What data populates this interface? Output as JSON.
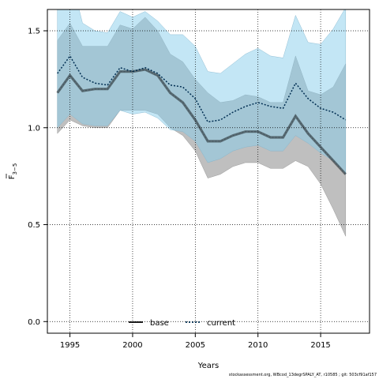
{
  "chart_data": {
    "type": "line",
    "xlabel": "Years",
    "ylabel_main": "F",
    "ylabel_sub": "3−5",
    "xlim": [
      1993.2,
      2018.9
    ],
    "ylim": [
      -0.06,
      1.61
    ],
    "x_ticks": [
      1995,
      2000,
      2005,
      2010,
      2015
    ],
    "y_ticks": [
      0.0,
      0.5,
      1.0,
      1.5
    ],
    "y_tick_labels": [
      "0.0",
      "0.5",
      "1.0",
      "1.5"
    ],
    "grid": true,
    "legend_position": "bottom-center",
    "x": [
      1994,
      1995,
      1996,
      1997,
      1998,
      1999,
      2000,
      2001,
      2002,
      2003,
      2004,
      2005,
      2006,
      2007,
      2008,
      2009,
      2010,
      2011,
      2012,
      2013,
      2014,
      2015,
      2016,
      2017
    ],
    "series": [
      {
        "name": "base",
        "color": "#000000",
        "dash": "solid",
        "values": [
          1.18,
          1.27,
          1.19,
          1.2,
          1.2,
          1.29,
          1.29,
          1.3,
          1.27,
          1.18,
          1.13,
          1.04,
          0.93,
          0.93,
          0.96,
          0.98,
          0.98,
          0.95,
          0.95,
          1.06,
          0.97,
          0.9,
          0.83,
          0.76
        ],
        "lower": [
          0.97,
          1.04,
          1.01,
          1.0,
          1.0,
          1.09,
          1.09,
          1.09,
          1.07,
          1.0,
          0.96,
          0.88,
          0.74,
          0.76,
          0.8,
          0.82,
          0.82,
          0.79,
          0.79,
          0.83,
          0.8,
          0.71,
          0.58,
          0.44
        ],
        "upper": [
          1.45,
          1.54,
          1.42,
          1.42,
          1.42,
          1.53,
          1.51,
          1.57,
          1.5,
          1.38,
          1.34,
          1.25,
          1.18,
          1.13,
          1.14,
          1.17,
          1.16,
          1.13,
          1.13,
          1.37,
          1.19,
          1.17,
          1.21,
          1.33
        ],
        "band_color": "#a9a9a9"
      },
      {
        "name": "current",
        "color": "#002e52",
        "dash": "dotted",
        "values": [
          1.28,
          1.37,
          1.26,
          1.23,
          1.22,
          1.31,
          1.29,
          1.31,
          1.28,
          1.22,
          1.21,
          1.15,
          1.03,
          1.04,
          1.08,
          1.11,
          1.13,
          1.11,
          1.1,
          1.23,
          1.15,
          1.1,
          1.08,
          1.04
        ],
        "lower": [
          1.0,
          1.07,
          1.02,
          1.01,
          1.01,
          1.09,
          1.07,
          1.08,
          1.05,
          0.99,
          0.98,
          0.93,
          0.82,
          0.84,
          0.88,
          0.9,
          0.91,
          0.88,
          0.88,
          0.96,
          0.92,
          0.87,
          0.83,
          0.76
        ],
        "upper": [
          1.62,
          1.8,
          1.54,
          1.5,
          1.49,
          1.6,
          1.57,
          1.6,
          1.55,
          1.48,
          1.48,
          1.42,
          1.29,
          1.28,
          1.33,
          1.38,
          1.41,
          1.37,
          1.36,
          1.58,
          1.44,
          1.43,
          1.51,
          1.62
        ],
        "band_color": "#87ceeb"
      }
    ]
  },
  "footer_text": "stockassessment.org, WBcod_13degrSPALY_AT, r10585 ; git: 503cf91af157"
}
